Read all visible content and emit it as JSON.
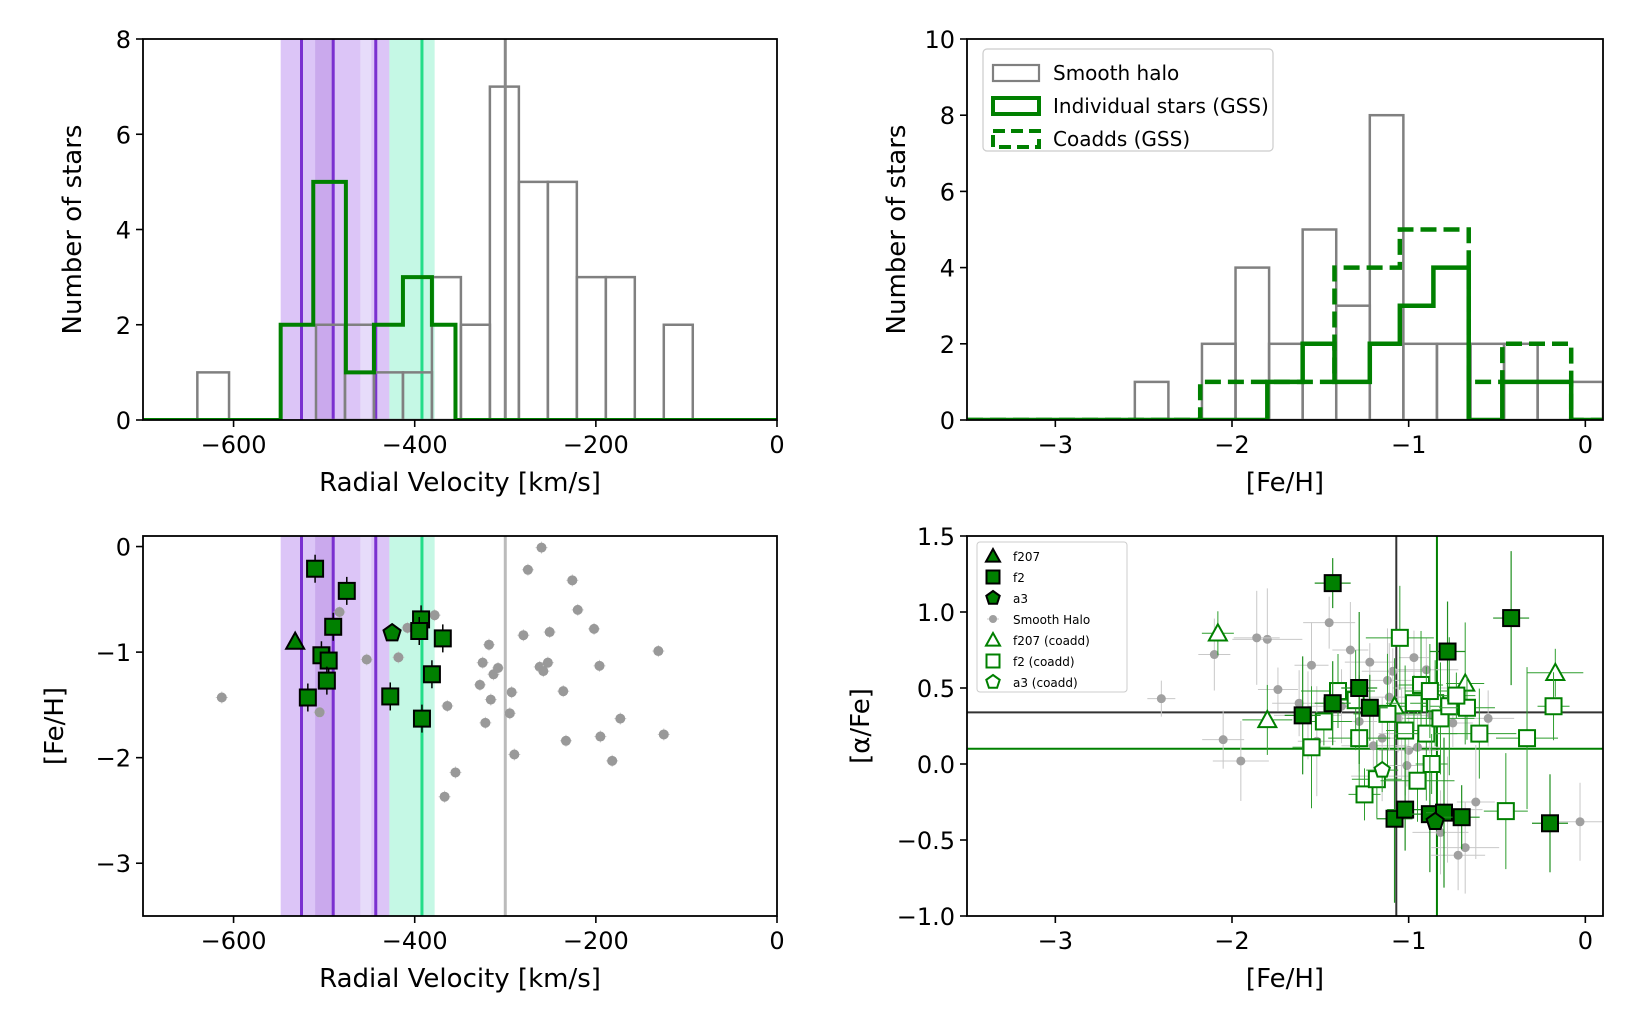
{
  "chart_data": [
    {
      "id": "rv_hist",
      "type": "histogram",
      "xlabel": "Radial Velocity [km/s]",
      "ylabel": "Number of stars",
      "xlim": [
        -700,
        0
      ],
      "ylim": [
        0,
        8
      ],
      "xticks": [
        -600,
        -400,
        -200,
        0
      ],
      "yticks": [
        0,
        2,
        4,
        6,
        8
      ],
      "xtick_labels": [
        "−600",
        "−400",
        "−200",
        "0"
      ],
      "ytick_labels": [
        "0",
        "2",
        "4",
        "6",
        "8"
      ],
      "bands": [
        {
          "x0": -548,
          "x1": -510,
          "color": "#9b59e8",
          "opacity": 0.35
        },
        {
          "x0": -510,
          "x1": -490,
          "color": "#8a40d8",
          "opacity": 0.45
        },
        {
          "x0": -490,
          "x1": -460,
          "color": "#9b59e8",
          "opacity": 0.35
        },
        {
          "x0": -460,
          "x1": -448,
          "color": "#b99af0",
          "opacity": 0.35
        },
        {
          "x0": -448,
          "x1": -428,
          "color": "#9b59e8",
          "opacity": 0.35
        },
        {
          "x0": -428,
          "x1": -378,
          "color": "#2ee6a0",
          "opacity": 0.28
        }
      ],
      "vlines": [
        {
          "x": -525,
          "color": "#7a30d0",
          "width": 3
        },
        {
          "x": -490,
          "color": "#7a30d0",
          "width": 3
        },
        {
          "x": -443,
          "color": "#7a30d0",
          "width": 3
        },
        {
          "x": -392,
          "color": "#22dd88",
          "width": 3
        },
        {
          "x": -300,
          "color": "#888888",
          "width": 3
        }
      ],
      "series": [
        {
          "name": "Smooth halo",
          "color": "#808080",
          "linewidth": 2.5,
          "edges": [
            -640,
            -605,
            -573,
            -541,
            -509,
            -477,
            -445,
            -413,
            -381,
            -349,
            -317,
            -285,
            -253,
            -221,
            -189,
            -157,
            -125,
            -93
          ],
          "counts": [
            1,
            0,
            0,
            0,
            2,
            2,
            1,
            1,
            3,
            2,
            7,
            5,
            5,
            3,
            3,
            0,
            2
          ]
        },
        {
          "name": "Individual stars (GSS)",
          "color": "#008000",
          "linewidth": 4,
          "edges": [
            -700,
            -548,
            -512,
            -476,
            -445,
            -413,
            -381,
            -355,
            0
          ],
          "counts": [
            0,
            2,
            5,
            1,
            2,
            3,
            2,
            0
          ]
        }
      ]
    },
    {
      "id": "feh_hist",
      "type": "histogram",
      "xlabel": "[Fe/H]",
      "ylabel": "Number of stars",
      "xlim": [
        -3.5,
        0.1
      ],
      "ylim": [
        0,
        10
      ],
      "xticks": [
        -3,
        -2,
        -1,
        0
      ],
      "yticks": [
        0,
        2,
        4,
        6,
        8,
        10
      ],
      "xtick_labels": [
        "−3",
        "−2",
        "−1",
        "0"
      ],
      "ytick_labels": [
        "0",
        "2",
        "4",
        "6",
        "8",
        "10"
      ],
      "legend": {
        "position": "upper-left"
      },
      "series": [
        {
          "name": "Smooth halo",
          "color": "#808080",
          "linewidth": 2.5,
          "style": "solid",
          "edges": [
            -3.5,
            -2.55,
            -2.36,
            -2.17,
            -1.98,
            -1.79,
            -1.6,
            -1.41,
            -1.22,
            -1.03,
            -0.84,
            -0.65,
            -0.46,
            -0.27,
            -0.08,
            0.1
          ],
          "counts": [
            0,
            1,
            0,
            2,
            4,
            2,
            5,
            3,
            8,
            2,
            2,
            2,
            2,
            1,
            1
          ]
        },
        {
          "name": "Individual stars (GSS)",
          "color": "#008000",
          "linewidth": 4.5,
          "style": "solid",
          "edges": [
            -3.5,
            -1.8,
            -1.6,
            -1.42,
            -1.22,
            -1.05,
            -0.86,
            -0.66,
            -0.47,
            -0.08,
            0.1
          ],
          "counts": [
            0,
            1,
            2,
            1,
            2,
            3,
            4,
            0,
            1,
            0
          ]
        },
        {
          "name": "Coadds (GSS)",
          "color": "#008000",
          "linewidth": 4.5,
          "style": "dashed",
          "edges": [
            -3.5,
            -2.18,
            -1.8,
            -1.42,
            -1.05,
            -0.66,
            -0.47,
            -0.08,
            0.1
          ],
          "counts": [
            0,
            1,
            1,
            4,
            5,
            1,
            2,
            0
          ]
        }
      ]
    },
    {
      "id": "rv_feh_scatter",
      "type": "scatter",
      "xlabel": "Radial Velocity [km/s]",
      "ylabel": "[Fe/H]",
      "xlim": [
        -700,
        0
      ],
      "ylim": [
        -3.5,
        0.1
      ],
      "xticks": [
        -600,
        -400,
        -200,
        0
      ],
      "yticks": [
        -3,
        -2,
        -1,
        0
      ],
      "xtick_labels": [
        "−600",
        "−400",
        "−200",
        "0"
      ],
      "ytick_labels": [
        "−3",
        "−2",
        "−1",
        "0"
      ],
      "vline_gray": {
        "x": -300,
        "color": "#bbbbbb"
      },
      "halo": {
        "color": "#999999",
        "points": [
          [
            -613,
            -1.43
          ],
          [
            -505,
            -1.57
          ],
          [
            -483,
            -0.62
          ],
          [
            -453,
            -1.07
          ],
          [
            -418,
            -1.05
          ],
          [
            -408,
            -0.77
          ],
          [
            -378,
            -0.65
          ],
          [
            -367,
            -2.37
          ],
          [
            -364,
            -1.51
          ],
          [
            -355,
            -2.14
          ],
          [
            -328,
            -1.31
          ],
          [
            -325,
            -1.1
          ],
          [
            -322,
            -1.67
          ],
          [
            -318,
            -0.93
          ],
          [
            -316,
            -1.45
          ],
          [
            -313,
            -1.21
          ],
          [
            -308,
            -1.15
          ],
          [
            -295,
            -1.58
          ],
          [
            -293,
            -1.38
          ],
          [
            -290,
            -1.97
          ],
          [
            -280,
            -0.84
          ],
          [
            -275,
            -0.22
          ],
          [
            -262,
            -1.14
          ],
          [
            -260,
            -0.01
          ],
          [
            -258,
            -1.18
          ],
          [
            -253,
            -1.1
          ],
          [
            -251,
            -0.81
          ],
          [
            -236,
            -1.37
          ],
          [
            -233,
            -1.84
          ],
          [
            -226,
            -0.32
          ],
          [
            -220,
            -0.6
          ],
          [
            -202,
            -0.78
          ],
          [
            -196,
            -1.13
          ],
          [
            -195,
            -1.8
          ],
          [
            -182,
            -2.03
          ],
          [
            -173,
            -1.63
          ],
          [
            -131,
            -0.99
          ],
          [
            -125,
            -1.78
          ]
        ]
      },
      "bands_ref": "rv_hist",
      "gss": {
        "color": "#008000",
        "squares": [
          [
            -510,
            -0.21
          ],
          [
            -475,
            -0.42
          ],
          [
            -503,
            -1.03
          ],
          [
            -495,
            -1.08
          ],
          [
            -490,
            -0.76
          ],
          [
            -497,
            -1.27
          ],
          [
            -518,
            -1.43
          ],
          [
            -393,
            -0.69
          ],
          [
            -395,
            -0.8
          ],
          [
            -369,
            -0.87
          ],
          [
            -381,
            -1.21
          ],
          [
            -427,
            -1.42
          ],
          [
            -392,
            -1.63
          ]
        ],
        "triangles": [
          [
            -532,
            -0.9
          ]
        ],
        "pentagons": [
          [
            -425,
            -0.82
          ]
        ]
      }
    },
    {
      "id": "feh_alpha_scatter",
      "type": "scatter",
      "xlabel": "[Fe/H]",
      "ylabel": "[α/Fe]",
      "xlim": [
        -3.5,
        0.1
      ],
      "ylim": [
        -1.0,
        1.5
      ],
      "xticks": [
        -3,
        -2,
        -1,
        0
      ],
      "yticks": [
        -1.0,
        -0.5,
        0.0,
        0.5,
        1.0,
        1.5
      ],
      "xtick_labels": [
        "−3",
        "−2",
        "−1",
        "0"
      ],
      "ytick_labels": [
        "−1.0",
        "−0.5",
        "0.0",
        "0.5",
        "1.0",
        "1.5"
      ],
      "ref_lines": {
        "black_v": -1.07,
        "black_h": 0.34,
        "green_v": -0.84,
        "green_h": 0.1
      },
      "legend": {
        "position": "upper-left"
      },
      "legend_entries": [
        "f207",
        "f2",
        "a3",
        "Smooth Halo",
        "f207 (coadd)",
        "f2 (coadd)",
        "a3 (coadd)"
      ],
      "halo": [
        [
          -2.4,
          0.43
        ],
        [
          -2.05,
          0.16
        ],
        [
          -1.95,
          0.02
        ],
        [
          -1.8,
          0.82
        ],
        [
          -1.74,
          0.49
        ],
        [
          -1.62,
          0.4
        ],
        [
          -1.57,
          0.32
        ],
        [
          -1.52,
          0.15
        ],
        [
          -1.45,
          0.93
        ],
        [
          -1.38,
          0.38
        ],
        [
          -1.33,
          0.75
        ],
        [
          -1.22,
          0.67
        ],
        [
          -1.2,
          0.12
        ],
        [
          -1.15,
          0.17
        ],
        [
          -1.12,
          0.55
        ],
        [
          -1.09,
          0.61
        ],
        [
          -1.06,
          0.3
        ],
        [
          -1.04,
          0.2
        ],
        [
          -1.0,
          0.09
        ],
        [
          -0.97,
          0.7
        ],
        [
          -0.95,
          0.11
        ],
        [
          -0.93,
          0.5
        ],
        [
          -0.88,
          0.2
        ],
        [
          -0.85,
          0.44
        ],
        [
          -0.82,
          -0.45
        ],
        [
          -0.78,
          -0.3
        ],
        [
          -0.75,
          0.27
        ],
        [
          -0.72,
          -0.6
        ],
        [
          -0.68,
          -0.55
        ],
        [
          -0.62,
          -0.25
        ],
        [
          -0.55,
          0.3
        ],
        [
          -0.03,
          -0.38
        ],
        [
          -1.28,
          0.28
        ],
        [
          -1.01,
          -0.01
        ],
        [
          -0.9,
          0.62
        ],
        [
          -1.55,
          0.65
        ],
        [
          -1.11,
          0.44
        ],
        [
          -1.15,
          -0.08
        ],
        [
          -2.1,
          0.72
        ],
        [
          -1.86,
          0.83
        ],
        [
          -0.87,
          0.32
        ]
      ],
      "f207_filled": [],
      "f2_filled": [
        [
          -1.43,
          1.19
        ],
        [
          -1.43,
          0.4
        ],
        [
          -1.6,
          0.32
        ],
        [
          -1.28,
          0.5
        ],
        [
          -1.22,
          0.37
        ],
        [
          -0.78,
          0.74
        ],
        [
          -0.42,
          0.96
        ],
        [
          -1.08,
          -0.36
        ],
        [
          -1.02,
          -0.3
        ],
        [
          -0.88,
          -0.33
        ],
        [
          -0.8,
          -0.32
        ],
        [
          -0.7,
          -0.35
        ],
        [
          -0.2,
          -0.39
        ]
      ],
      "a3_filled": [
        [
          -0.85,
          -0.38
        ]
      ],
      "f207_open": [
        [
          -2.08,
          0.86
        ],
        [
          -1.8,
          0.29
        ],
        [
          -1.08,
          0.38
        ],
        [
          -0.68,
          0.53
        ],
        [
          -0.17,
          0.6
        ]
      ],
      "f2_open": [
        [
          -1.55,
          0.11
        ],
        [
          -1.48,
          0.28
        ],
        [
          -1.4,
          0.48
        ],
        [
          -1.3,
          0.42
        ],
        [
          -1.28,
          0.17
        ],
        [
          -1.25,
          -0.2
        ],
        [
          -1.18,
          -0.1
        ],
        [
          -1.05,
          0.83
        ],
        [
          -1.02,
          0.22
        ],
        [
          -0.97,
          0.4
        ],
        [
          -0.95,
          -0.11
        ],
        [
          -0.93,
          0.52
        ],
        [
          -0.9,
          0.2
        ],
        [
          -0.87,
          0.0
        ],
        [
          -0.85,
          0.4
        ],
        [
          -0.82,
          0.3
        ],
        [
          -0.77,
          0.38
        ],
        [
          -0.67,
          0.37
        ],
        [
          -0.6,
          0.2
        ],
        [
          -0.45,
          -0.31
        ],
        [
          -0.33,
          0.17
        ],
        [
          -0.18,
          0.38
        ],
        [
          -0.88,
          0.48
        ],
        [
          -1.12,
          0.33
        ],
        [
          -0.73,
          0.45
        ]
      ],
      "a3_open": [
        [
          -1.15,
          -0.04
        ]
      ]
    }
  ]
}
